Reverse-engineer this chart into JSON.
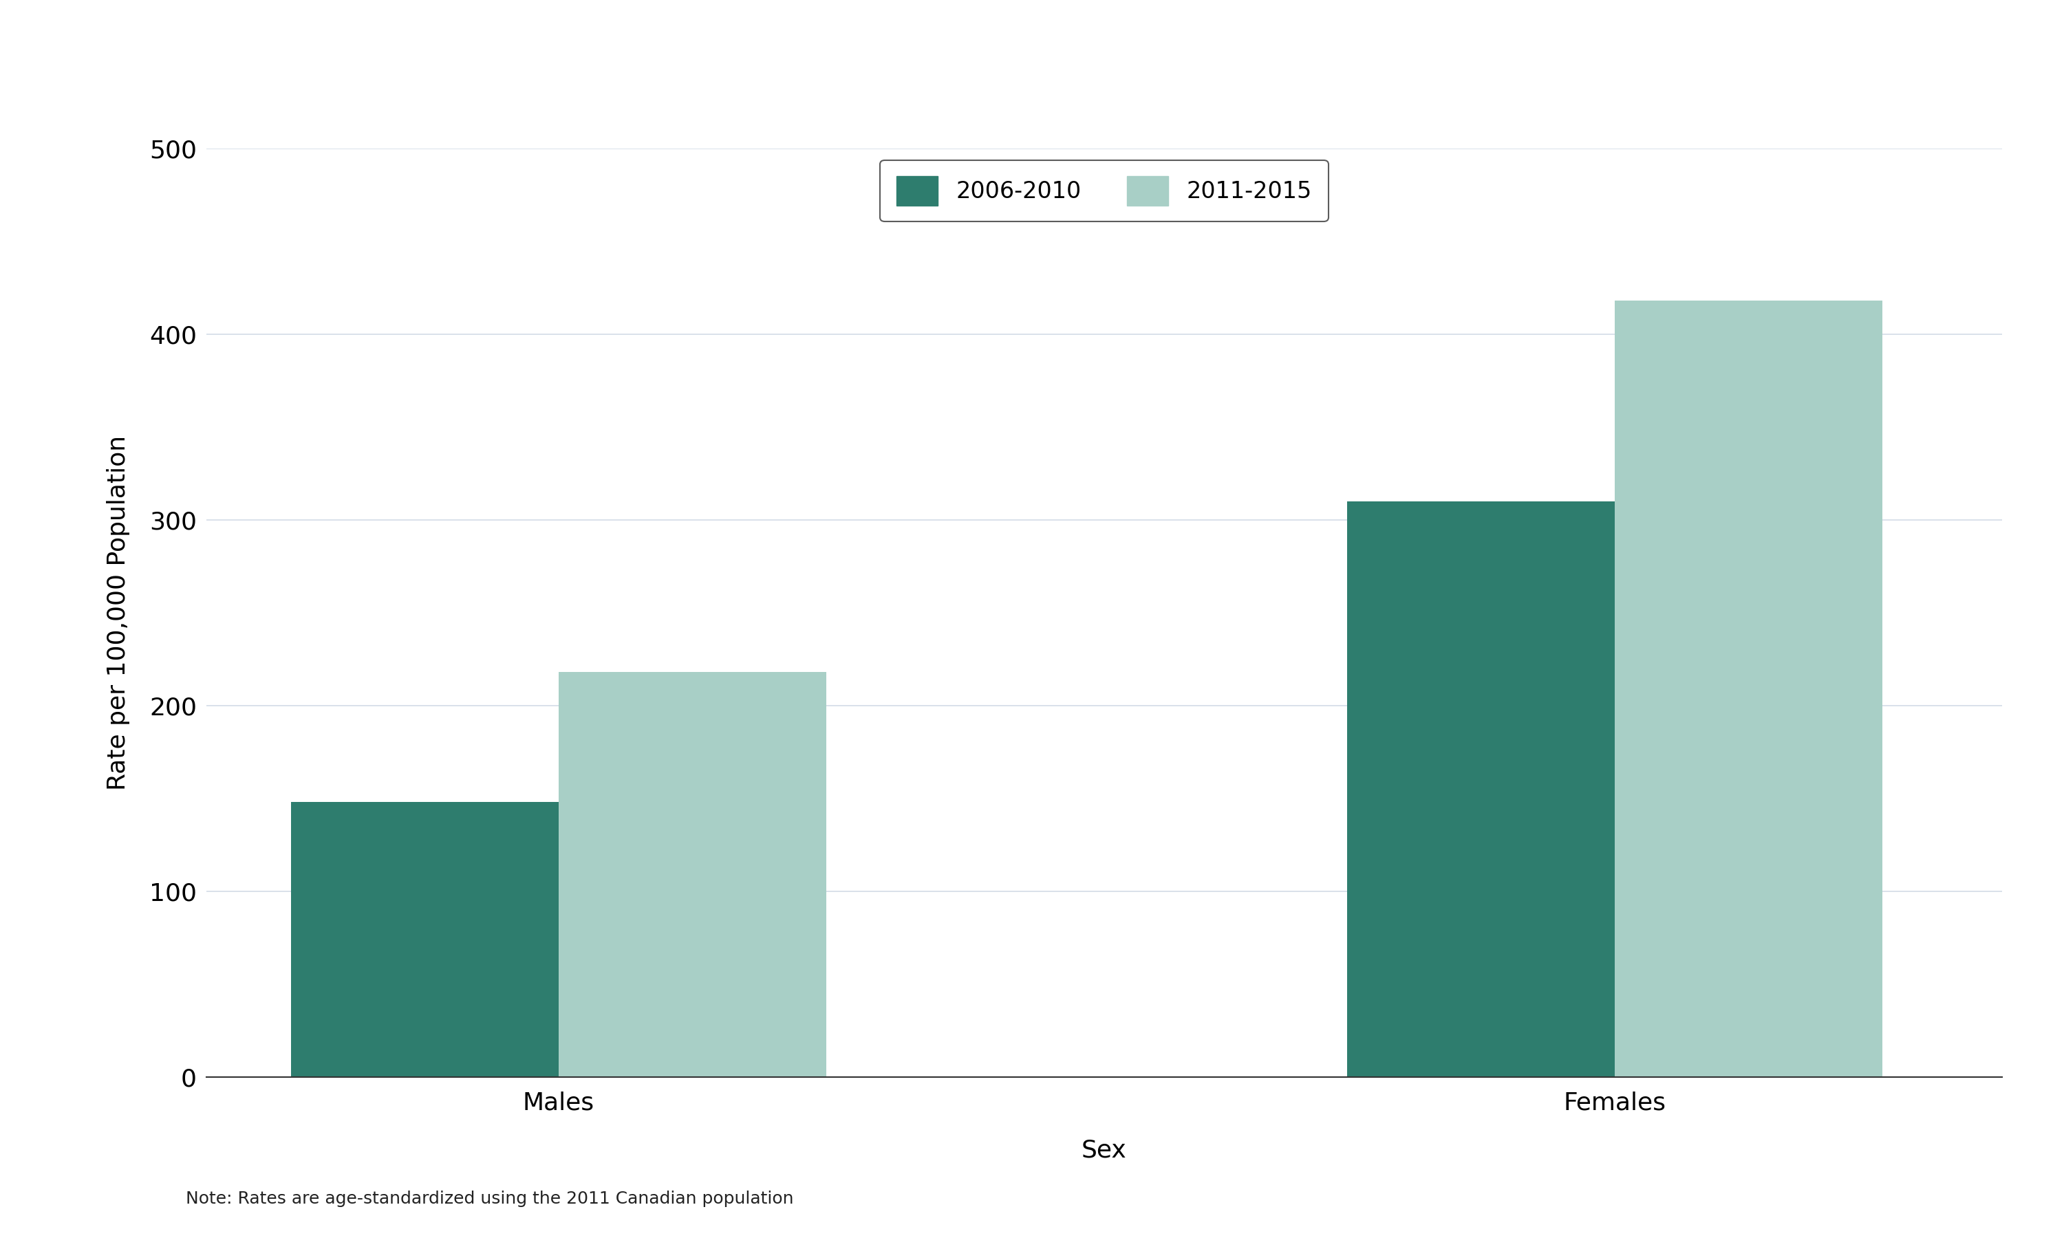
{
  "categories": [
    "Males",
    "Females"
  ],
  "series": {
    "2006-2010": [
      148,
      310
    ],
    "2011-2015": [
      218,
      418
    ]
  },
  "bar_colors": {
    "2006-2010": "#2e7d6e",
    "2011-2015": "#a8cfc6"
  },
  "ylabel": "Rate per 100,000 Population",
  "xlabel": "Sex",
  "ylim": [
    0,
    500
  ],
  "yticks": [
    0,
    100,
    200,
    300,
    400,
    500
  ],
  "legend_labels": [
    "2006-2010",
    "2011-2015"
  ],
  "note": "Note: Rates are age-standardized using the 2011 Canadian population",
  "background_color": "#ffffff",
  "grid_color": "#d3dce6",
  "bar_width": 0.38,
  "label_fontsize": 26,
  "tick_fontsize": 26,
  "legend_fontsize": 24,
  "note_fontsize": 18
}
